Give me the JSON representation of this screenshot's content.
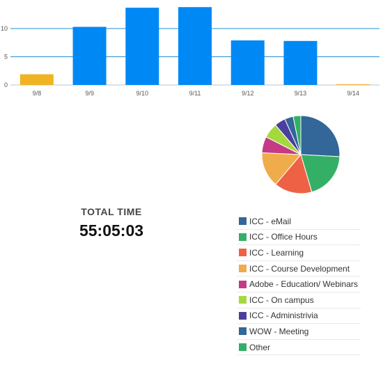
{
  "chart_data": [
    {
      "type": "bar",
      "categories": [
        "9/8",
        "9/9",
        "9/10",
        "9/11",
        "9/12",
        "9/13",
        "9/14"
      ],
      "values": [
        1.9,
        10.3,
        13.7,
        13.8,
        7.9,
        7.8,
        0.1
      ],
      "bar_colors": [
        "#f0b323",
        "#0089f5",
        "#0089f5",
        "#0089f5",
        "#0089f5",
        "#0089f5",
        "#f0b323"
      ],
      "ylim": [
        0,
        15
      ],
      "yticks": [
        0,
        5,
        10
      ],
      "grid": true,
      "gridline_color": "#1f8fd6"
    },
    {
      "type": "pie",
      "labels": [
        "ICC - eMail",
        "ICC - Office Hours",
        "ICC - Learning",
        "ICC - Course Development",
        "Adobe - Education/ Webinars",
        "ICC - On campus",
        "ICC - Administrivia",
        "WOW - Meeting",
        "Other"
      ],
      "values": [
        24.5,
        18.6,
        14.9,
        13.8,
        6.4,
        5.9,
        4.3,
        3.4,
        3.0
      ],
      "colors": [
        "#336699",
        "#33b066",
        "#ef6145",
        "#f0ab4b",
        "#c63a85",
        "#a4d93e",
        "#4b3e9e",
        "#336699",
        "#33b066"
      ]
    }
  ],
  "summary": {
    "total_label": "TOTAL TIME",
    "total_value": "55:05:03"
  },
  "legend": {
    "items": [
      {
        "label": "ICC - eMail",
        "color": "#336699"
      },
      {
        "label": "ICC - Office Hours",
        "color": "#33b066"
      },
      {
        "label": "ICC - Learning",
        "color": "#ef6145"
      },
      {
        "label": "ICC - Course Development",
        "color": "#f0ab4b"
      },
      {
        "label": "Adobe - Education/ Webinars",
        "color": "#c63a85"
      },
      {
        "label": "ICC - On campus",
        "color": "#a4d93e"
      },
      {
        "label": "ICC - Administrivia",
        "color": "#4b3e9e"
      },
      {
        "label": "WOW - Meeting",
        "color": "#336699"
      },
      {
        "label": "Other",
        "color": "#33b066"
      }
    ]
  }
}
